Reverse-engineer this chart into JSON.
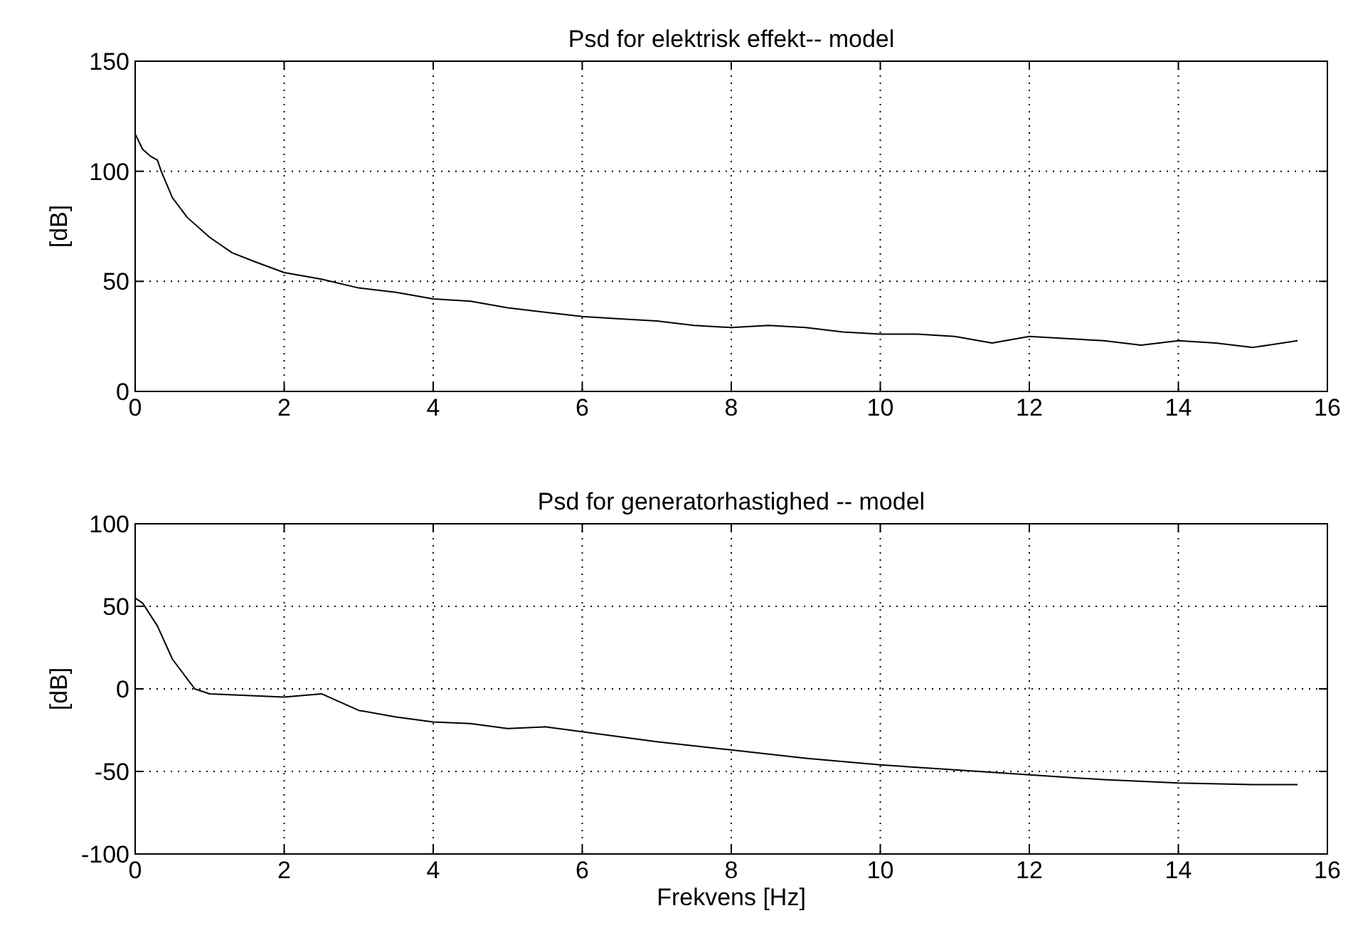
{
  "chart_data": [
    {
      "type": "line",
      "title": "Psd for elektrisk effekt-- model",
      "ylabel": "[dB]",
      "xlim": [
        0,
        16
      ],
      "xticks": [
        0,
        2,
        4,
        6,
        8,
        10,
        12,
        14,
        16
      ],
      "ylim": [
        0,
        150
      ],
      "yticks": [
        0,
        50,
        100,
        150
      ],
      "grid": true,
      "line_style": "solid",
      "series": [
        {
          "color": "#000000",
          "x": [
            0,
            0.1,
            0.2,
            0.3,
            0.35,
            0.5,
            0.7,
            1.0,
            1.3,
            1.6,
            2,
            2.5,
            3,
            3.5,
            4,
            4.5,
            5,
            5.5,
            6,
            6.5,
            7,
            7.5,
            8,
            8.5,
            9,
            9.5,
            10,
            10.5,
            11,
            11.5,
            12,
            12.5,
            13,
            13.5,
            14,
            14.5,
            15,
            15.6
          ],
          "values": [
            117,
            110,
            107,
            105,
            100,
            88,
            79,
            70,
            63,
            59,
            54,
            51,
            47,
            45,
            42,
            41,
            38,
            36,
            34,
            33,
            32,
            30,
            29,
            30,
            29,
            27,
            26,
            26,
            25,
            22,
            25,
            24,
            23,
            21,
            23,
            22,
            20,
            23
          ]
        }
      ]
    },
    {
      "type": "line",
      "title": "Psd for generatorhastighed -- model",
      "ylabel": "[dB]",
      "xlabel": "Frekvens [Hz]",
      "xlim": [
        0,
        16
      ],
      "xticks": [
        0,
        2,
        4,
        6,
        8,
        10,
        12,
        14,
        16
      ],
      "ylim": [
        -100,
        100
      ],
      "yticks": [
        -100,
        -50,
        0,
        50,
        100
      ],
      "grid": true,
      "line_style": "solid",
      "series": [
        {
          "color": "#000000",
          "x": [
            0,
            0.1,
            0.3,
            0.5,
            0.7,
            0.8,
            1.0,
            1.5,
            2,
            2.5,
            3,
            3.5,
            4,
            4.5,
            5,
            5.5,
            6,
            7,
            8,
            9,
            10,
            11,
            12,
            13,
            14,
            15,
            15.6
          ],
          "values": [
            55,
            52,
            38,
            18,
            6,
            0,
            -3,
            -4,
            -5,
            -3,
            -13,
            -17,
            -20,
            -21,
            -24,
            -23,
            -26,
            -32,
            -37,
            -42,
            -46,
            -49,
            -52,
            -55,
            -57,
            -58,
            -58
          ]
        }
      ]
    }
  ]
}
